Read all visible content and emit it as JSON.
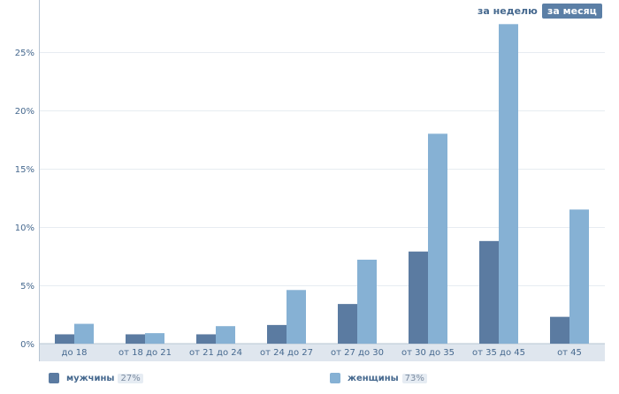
{
  "periods": {
    "week": "за неделю",
    "month": "за месяц",
    "active": "month"
  },
  "legend": [
    {
      "label": "мужчины",
      "value": "27%",
      "color": "#5b7ba1"
    },
    {
      "label": "женщины",
      "value": "73%",
      "color": "#86b1d4"
    }
  ],
  "chart_data": {
    "type": "bar",
    "categories": [
      "до 18",
      "от 18 до 21",
      "от 21 до 24",
      "от 24 до 27",
      "от 27 до 30",
      "от 30 до 35",
      "от 35 до 45",
      "от 45"
    ],
    "series": [
      {
        "name": "мужчины",
        "values": [
          0.8,
          0.8,
          0.8,
          1.6,
          3.4,
          7.9,
          8.8,
          2.3
        ],
        "color": "#5b7ba1"
      },
      {
        "name": "женщины",
        "values": [
          1.7,
          0.9,
          1.5,
          4.6,
          7.2,
          18.0,
          27.4,
          11.5
        ],
        "color": "#86b1d4"
      }
    ],
    "yticks": [
      "0%",
      "5%",
      "10%",
      "15%",
      "20%",
      "25%"
    ],
    "ylim": [
      0,
      28
    ],
    "grid": true,
    "legend_position": "bottom"
  }
}
